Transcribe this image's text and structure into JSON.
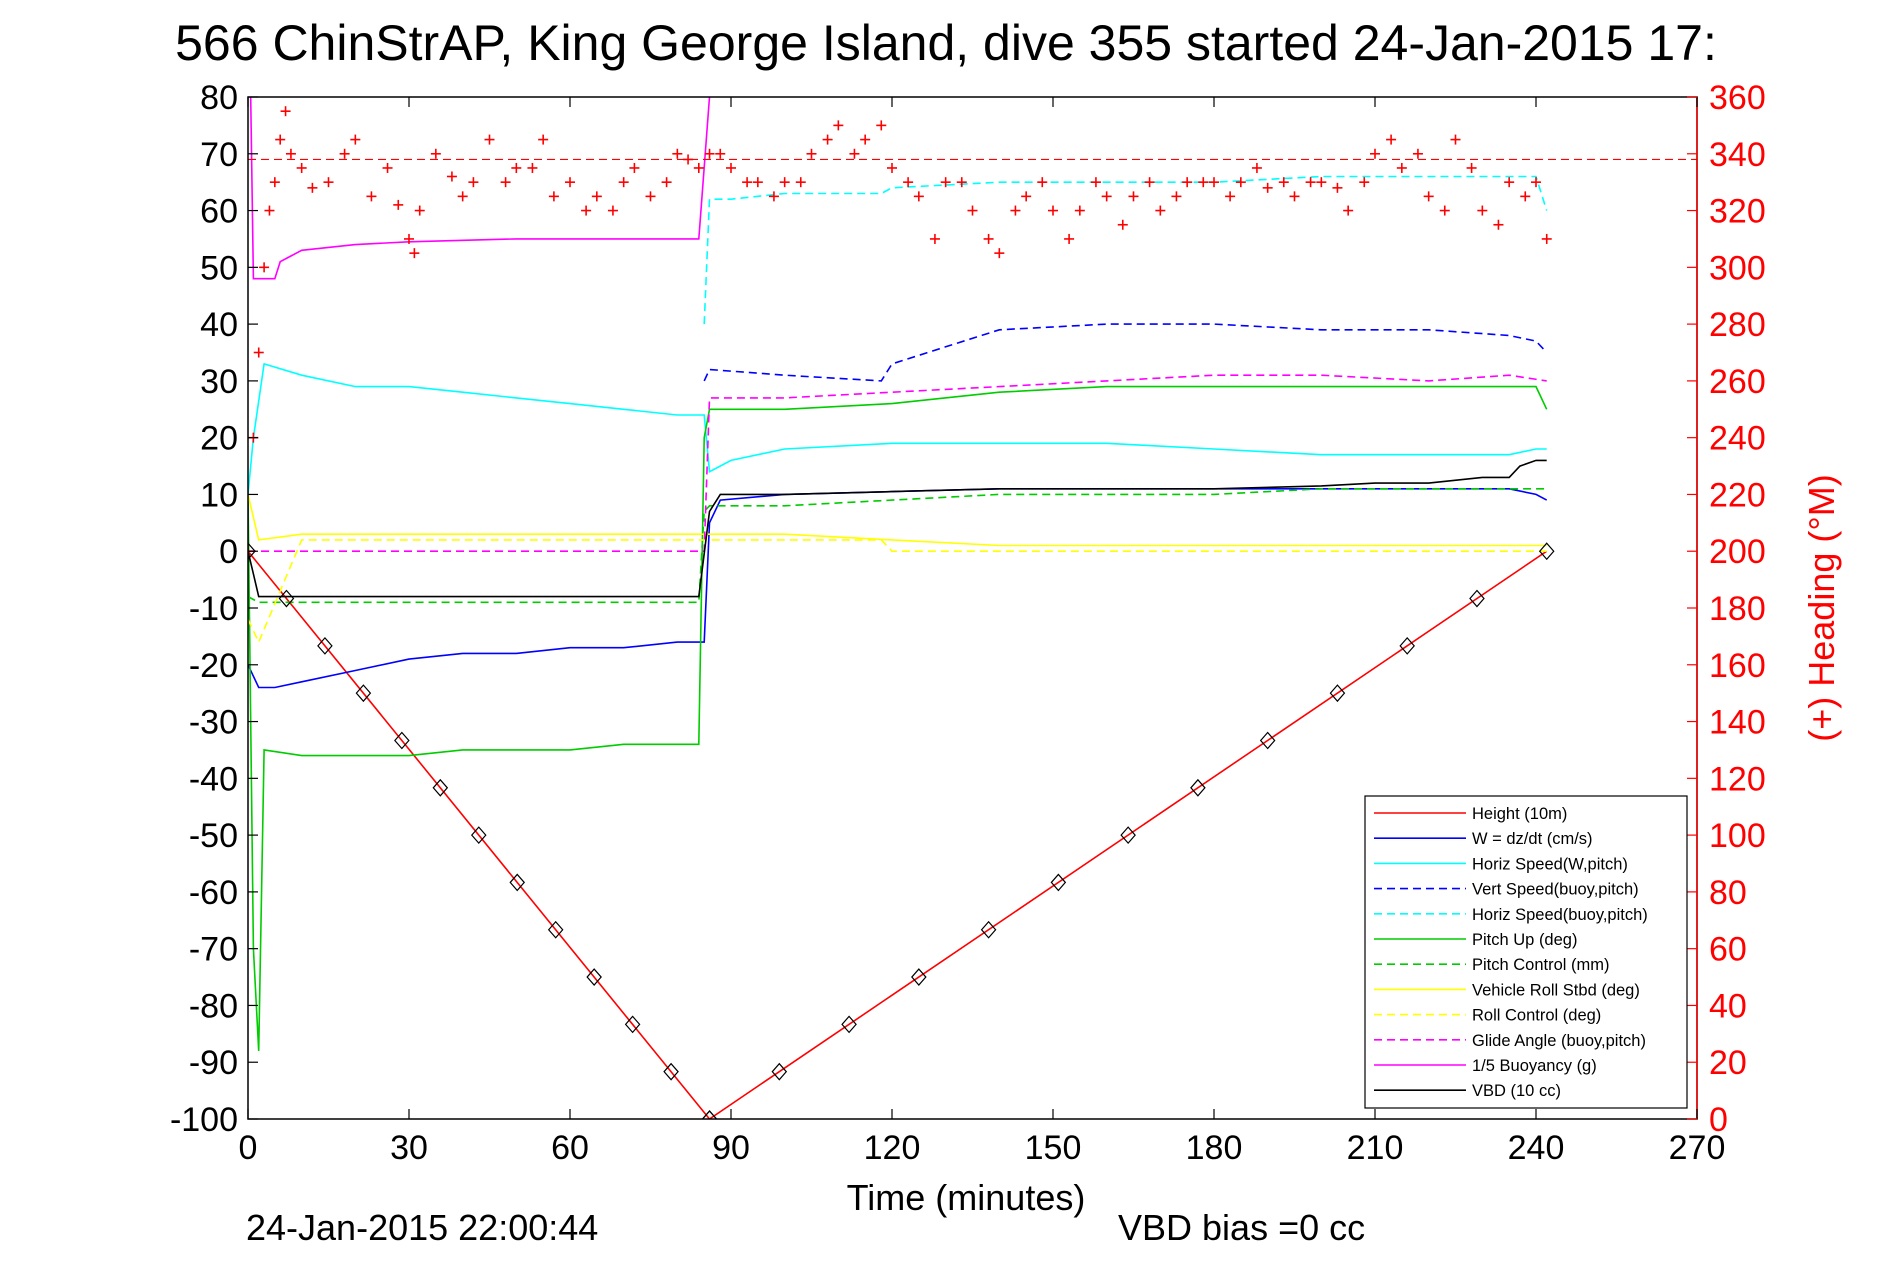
{
  "chart_data": {
    "type": "line",
    "title": "566 ChinStrAP, King George Island, dive 355 started 24-Jan-2015 17:",
    "xlabel": "Time (minutes)",
    "ylabel": "",
    "y2label": "(+) Heading (°M)",
    "xlim": [
      0,
      270
    ],
    "ylim": [
      -100,
      80
    ],
    "y2lim": [
      0,
      360
    ],
    "xticks": [
      0,
      30,
      60,
      90,
      120,
      150,
      180,
      210,
      240,
      270
    ],
    "yticks": [
      80,
      70,
      60,
      50,
      40,
      30,
      20,
      10,
      0,
      -10,
      -20,
      -30,
      -40,
      -50,
      -60,
      -70,
      -80,
      -90,
      -100
    ],
    "y2ticks": [
      360,
      340,
      320,
      300,
      280,
      260,
      240,
      220,
      200,
      180,
      160,
      140,
      120,
      100,
      80,
      60,
      40,
      20,
      0
    ],
    "grid": false,
    "legend_position": "bottom-right",
    "footer_left": "24-Jan-2015 22:00:44",
    "footer_right": "VBD bias =0 cc",
    "colors": {
      "red": "#ff0000",
      "blue": "#0000ff",
      "cyan": "#00ffff",
      "green": "#00cc00",
      "yellow": "#ffff00",
      "magenta": "#ff00ff",
      "black": "#000000"
    },
    "series": [
      {
        "name": "Height (10m)",
        "color": "#ff0000",
        "style": "solid",
        "x": [
          0,
          86,
          242
        ],
        "y": [
          0,
          -100,
          0
        ]
      },
      {
        "name": "W = dz/dt (cm/s)",
        "color": "#0000ff",
        "style": "solid",
        "x": [
          0,
          2,
          5,
          10,
          20,
          30,
          40,
          50,
          60,
          70,
          80,
          85,
          86,
          88,
          100,
          120,
          140,
          160,
          180,
          200,
          220,
          235,
          240,
          242
        ],
        "y": [
          -20,
          -24,
          -24,
          -23,
          -21,
          -19,
          -18,
          -18,
          -17,
          -17,
          -16,
          -16,
          5,
          9,
          10,
          10.5,
          11,
          11,
          11,
          11,
          11,
          11,
          10,
          9
        ]
      },
      {
        "name": "Horiz Speed(W,pitch)",
        "color": "#00ffff",
        "style": "solid",
        "x": [
          0,
          1,
          3,
          10,
          20,
          30,
          40,
          50,
          60,
          70,
          80,
          85,
          86,
          90,
          100,
          120,
          140,
          160,
          180,
          200,
          220,
          235,
          240,
          242
        ],
        "y": [
          10,
          20,
          33,
          31,
          29,
          29,
          28,
          27,
          26,
          25,
          24,
          24,
          14,
          16,
          18,
          19,
          19,
          19,
          18,
          17,
          17,
          17,
          18,
          18
        ]
      },
      {
        "name": "Vert Speed(buoy,pitch)",
        "color": "#0000ff",
        "style": "dashed",
        "x": [
          85,
          86,
          100,
          118,
          120,
          130,
          140,
          160,
          180,
          200,
          220,
          235,
          240,
          242
        ],
        "y": [
          30,
          32,
          31,
          30,
          33,
          36,
          39,
          40,
          40,
          39,
          39,
          38,
          37,
          35
        ]
      },
      {
        "name": "Horiz Speed(buoy,pitch)",
        "color": "#00ffff",
        "style": "dashed",
        "x": [
          85,
          86,
          90,
          100,
          118,
          120,
          140,
          160,
          180,
          200,
          220,
          235,
          240,
          242
        ],
        "y": [
          40,
          62,
          62,
          63,
          63,
          64,
          65,
          65,
          65,
          66,
          66,
          66,
          66,
          60
        ]
      },
      {
        "name": "Pitch Up (deg)",
        "color": "#00cc00",
        "style": "solid",
        "x": [
          0,
          1,
          2,
          3,
          10,
          20,
          30,
          40,
          50,
          60,
          70,
          80,
          84,
          85,
          86,
          100,
          120,
          140,
          160,
          180,
          200,
          220,
          235,
          240,
          242
        ],
        "y": [
          10,
          -70,
          -88,
          -35,
          -36,
          -36,
          -36,
          -35,
          -35,
          -35,
          -34,
          -34,
          -34,
          20,
          25,
          25,
          26,
          28,
          29,
          29,
          29,
          29,
          29,
          29,
          25
        ]
      },
      {
        "name": "Pitch Control (mm)",
        "color": "#00cc00",
        "style": "dashed",
        "x": [
          0,
          2,
          10,
          30,
          50,
          70,
          84,
          85,
          86,
          100,
          120,
          140,
          160,
          180,
          200,
          220,
          235,
          240,
          242
        ],
        "y": [
          -8,
          -9,
          -9,
          -9,
          -9,
          -9,
          -9,
          7,
          8,
          8,
          9,
          10,
          10,
          10,
          11,
          11,
          11,
          11,
          11
        ]
      },
      {
        "name": "Vehicle Roll Stbd (deg)",
        "color": "#ffff00",
        "style": "solid",
        "x": [
          0,
          2,
          10,
          30,
          50,
          70,
          84,
          86,
          100,
          120,
          140,
          160,
          180,
          200,
          220,
          235,
          242
        ],
        "y": [
          10,
          2,
          3,
          3,
          3,
          3,
          3,
          3,
          3,
          2,
          1,
          1,
          1,
          1,
          1,
          1,
          1
        ]
      },
      {
        "name": "Roll Control (deg)",
        "color": "#ffff00",
        "style": "dashed",
        "x": [
          0,
          2,
          10,
          30,
          50,
          70,
          84,
          86,
          100,
          118,
          120,
          140,
          160,
          180,
          200,
          220,
          235,
          242
        ],
        "y": [
          -12,
          -16,
          2,
          2,
          2,
          2,
          2,
          2,
          2,
          2,
          0,
          0,
          0,
          0,
          0,
          0,
          0,
          0
        ]
      },
      {
        "name": "Glide Angle (buoy,pitch)",
        "color": "#ff00ff",
        "style": "dashed",
        "x": [
          0,
          85,
          86,
          100,
          120,
          140,
          160,
          180,
          200,
          220,
          235,
          242
        ],
        "y": [
          0,
          0,
          27,
          27,
          28,
          29,
          30,
          31,
          31,
          30,
          31,
          30
        ]
      },
      {
        "name": "1/5 Buoyancy (g)",
        "color": "#ff00ff",
        "style": "solid",
        "x": [
          0.5,
          1,
          2,
          5,
          6,
          8,
          10,
          20,
          30,
          50,
          70,
          84,
          86
        ],
        "y": [
          80,
          48,
          48,
          48,
          51,
          52,
          53,
          54,
          54.5,
          55,
          55,
          55,
          80
        ]
      },
      {
        "name": "VBD (10 cc)",
        "color": "#000000",
        "style": "solid",
        "x": [
          0,
          1,
          2,
          84,
          86,
          88,
          100,
          120,
          140,
          160,
          180,
          200,
          210,
          220,
          230,
          235,
          237,
          240,
          242
        ],
        "y": [
          0,
          -4,
          -8,
          -8,
          7,
          10,
          10,
          10.5,
          11,
          11,
          11,
          11.5,
          12,
          12,
          13,
          13,
          15,
          16,
          16
        ]
      }
    ],
    "heading_series": {
      "name": "(+) Heading",
      "axis": "right",
      "marker": "+",
      "color": "#ff0000",
      "x": [
        0,
        1,
        2,
        3,
        4,
        5,
        6,
        7,
        8,
        10,
        12,
        15,
        18,
        20,
        23,
        26,
        28,
        30,
        31,
        32,
        35,
        38,
        40,
        42,
        45,
        48,
        50,
        53,
        55,
        57,
        60,
        63,
        65,
        68,
        70,
        72,
        75,
        78,
        80,
        82,
        84,
        86,
        88,
        90,
        93,
        95,
        98,
        100,
        103,
        105,
        108,
        110,
        113,
        115,
        118,
        120,
        123,
        125,
        128,
        130,
        133,
        135,
        138,
        140,
        143,
        145,
        148,
        150,
        153,
        155,
        158,
        160,
        163,
        165,
        168,
        170,
        173,
        175,
        178,
        180,
        183,
        185,
        188,
        190,
        193,
        195,
        198,
        200,
        203,
        205,
        208,
        210,
        213,
        215,
        218,
        220,
        223,
        225,
        228,
        230,
        233,
        235,
        238,
        240,
        242
      ],
      "y": [
        200,
        240,
        270,
        300,
        320,
        330,
        345,
        355,
        340,
        335,
        328,
        330,
        340,
        345,
        325,
        335,
        322,
        310,
        305,
        320,
        340,
        332,
        325,
        330,
        345,
        330,
        335,
        335,
        345,
        325,
        330,
        320,
        325,
        320,
        330,
        335,
        325,
        330,
        340,
        338,
        335,
        340,
        340,
        335,
        330,
        330,
        325,
        330,
        330,
        340,
        345,
        350,
        340,
        345,
        350,
        335,
        330,
        325,
        310,
        330,
        330,
        320,
        310,
        305,
        320,
        325,
        330,
        320,
        310,
        320,
        330,
        325,
        315,
        325,
        330,
        320,
        325,
        330,
        330,
        330,
        325,
        330,
        335,
        328,
        330,
        325,
        330,
        330,
        328,
        320,
        330,
        340,
        345,
        335,
        340,
        325,
        320,
        345,
        335,
        320,
        315,
        330,
        325,
        330,
        310
      ]
    },
    "reference_lines": {
      "heading_dashed_y2": 338,
      "zero_dashed_y": 0
    }
  }
}
